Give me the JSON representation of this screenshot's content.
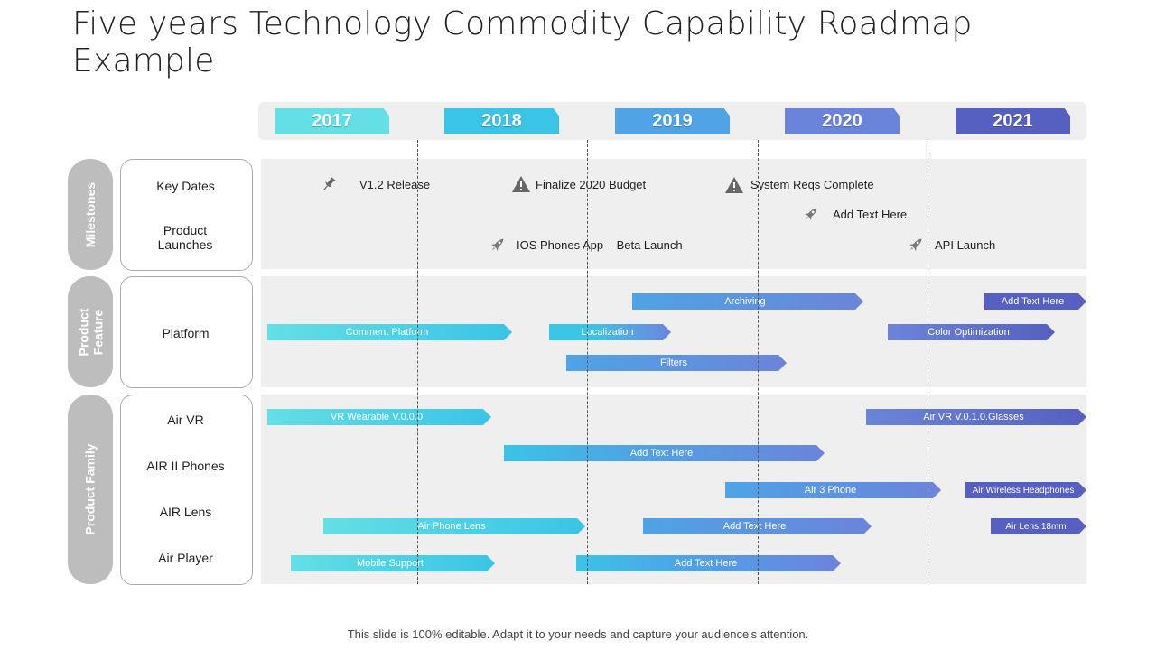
{
  "title": "Five years Technology Commodity Capability Roadmap Example",
  "years": [
    "2017",
    "2018",
    "2019",
    "2020",
    "2021"
  ],
  "sections": {
    "milestones": "Milestones",
    "product_feature": "Product Feature",
    "product_family": "Product Family"
  },
  "row_labels": {
    "key_dates": "Key Dates",
    "product_launches": "Product Launches",
    "platform": "Platform",
    "air_vr": "Air VR",
    "air_ii_phones": "AIR II Phones",
    "air_lens": "AIR Lens",
    "air_player": "Air Player"
  },
  "milestones": [
    {
      "icon": "pushpin-icon",
      "text": "V1.2 Release"
    },
    {
      "icon": "warning-icon",
      "text": "Finalize 2020 Budget"
    },
    {
      "icon": "warning-icon",
      "text": "System Reqs Complete"
    },
    {
      "icon": "rocket-icon",
      "text": "Add Text Here"
    },
    {
      "icon": "rocket-icon",
      "text": "IOS Phones App – Beta Launch"
    },
    {
      "icon": "rocket-icon",
      "text": "API Launch"
    }
  ],
  "bars": [
    {
      "label": "Archiving"
    },
    {
      "label": "Add Text Here"
    },
    {
      "label": "Comment Platform"
    },
    {
      "label": "Localization"
    },
    {
      "label": "Color Optimization"
    },
    {
      "label": "Filters"
    },
    {
      "label": "VR Wearable V.0.0.0"
    },
    {
      "label": "Air VR V.0.1.0.Glasses"
    },
    {
      "label": "Add Text Here"
    },
    {
      "label": "Air 3 Phone"
    },
    {
      "label": "Air Wireless Headphones"
    },
    {
      "label": "Air Phone Lens"
    },
    {
      "label": "Add Text Here"
    },
    {
      "label": "Air Lens 18mm"
    },
    {
      "label": "Mobile Support"
    },
    {
      "label": "Add Text Here"
    }
  ],
  "colors": {
    "year_2017": "#63dfe5",
    "year_2018": "#3ac4e6",
    "year_2019": "#4fa3e6",
    "year_2020": "#6b84db",
    "year_2021": "#5560c0",
    "section_tab": "#bdbdbd",
    "panel": "#efefef"
  },
  "footer": "This slide is 100% editable. Adapt it to your needs and capture your audience's attention."
}
